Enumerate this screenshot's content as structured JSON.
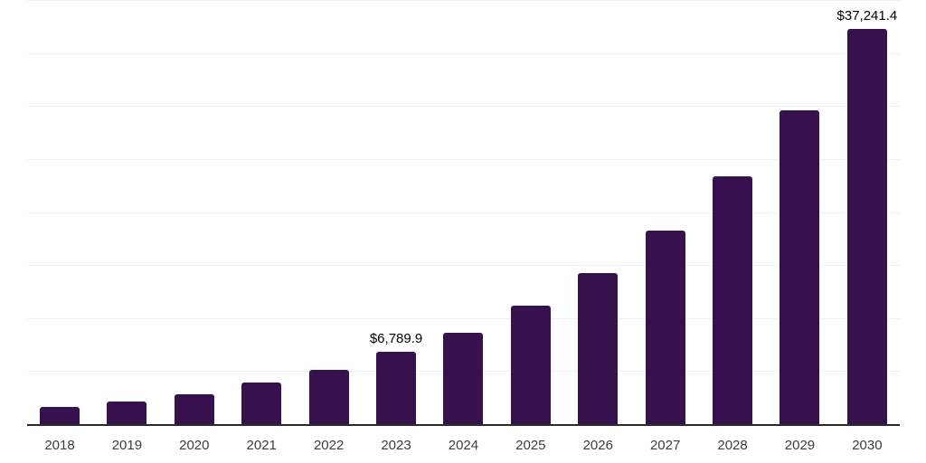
{
  "chart_data": {
    "type": "bar",
    "title": "",
    "xlabel": "",
    "ylabel": "",
    "categories": [
      "2018",
      "2019",
      "2020",
      "2021",
      "2022",
      "2023",
      "2024",
      "2025",
      "2026",
      "2027",
      "2028",
      "2029",
      "2030"
    ],
    "values": [
      1620,
      2140,
      2820,
      3930,
      5120,
      6789.9,
      8620,
      11180,
      14250,
      18260,
      23380,
      29600,
      37241.4
    ],
    "bar_labels": [
      "",
      "",
      "",
      "",
      "",
      "$6,789.9",
      "",
      "",
      "",
      "",
      "",
      "",
      "$37,241.4"
    ],
    "ylim": [
      0,
      40000
    ],
    "grid_step": 5000,
    "grid": true,
    "legend": false,
    "y_tick_labels_visible": false,
    "bar_color": "#36114d",
    "grid_color": "#f1f0f3",
    "axis_line_color": "#2a2a2a",
    "x_label_color": "#3c3c3c",
    "data_label_color": "#000000",
    "background_color": "#ffffff"
  }
}
